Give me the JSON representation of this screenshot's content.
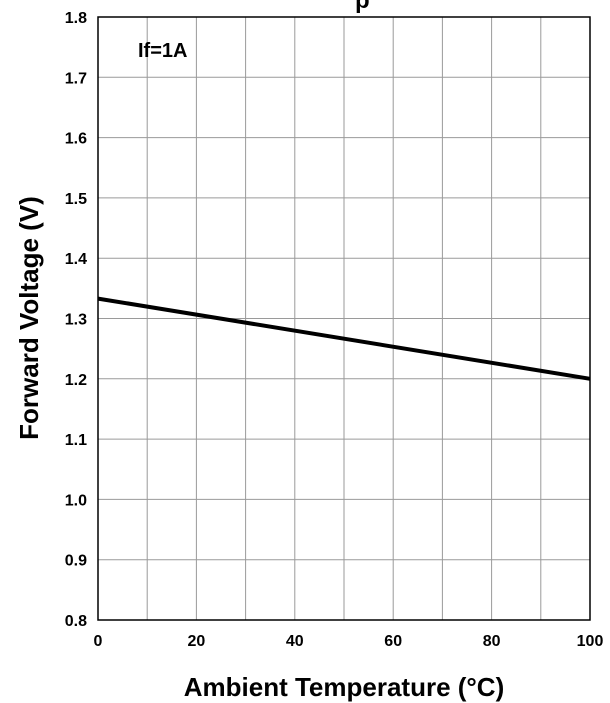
{
  "chart_data": {
    "type": "line",
    "title": "",
    "title_fragment": "p",
    "xlabel": "Ambient Temperature (°C)",
    "ylabel": "Forward Voltage (V)",
    "annotation": "If=1A",
    "xlim": [
      0,
      100
    ],
    "ylim": [
      0.8,
      1.8
    ],
    "x_ticks": [
      0,
      20,
      40,
      60,
      80,
      100
    ],
    "y_ticks": [
      "0.8",
      "0.9",
      "1.0",
      "1.1",
      "1.2",
      "1.3",
      "1.4",
      "1.5",
      "1.6",
      "1.7",
      "1.8"
    ],
    "x_minor_step": 10,
    "grid": true,
    "series": [
      {
        "x": [
          0,
          100
        ],
        "y": [
          1.333,
          1.2
        ],
        "color": "#000000"
      }
    ]
  }
}
